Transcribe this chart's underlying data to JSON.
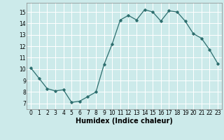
{
  "x": [
    0,
    1,
    2,
    3,
    4,
    5,
    6,
    7,
    8,
    9,
    10,
    11,
    12,
    13,
    14,
    15,
    16,
    17,
    18,
    19,
    20,
    21,
    22,
    23
  ],
  "y": [
    10.1,
    9.2,
    8.3,
    8.1,
    8.2,
    7.1,
    7.2,
    7.6,
    8.0,
    10.4,
    12.2,
    14.3,
    14.7,
    14.3,
    15.2,
    15.0,
    14.2,
    15.1,
    15.0,
    14.2,
    13.1,
    12.7,
    11.7,
    10.5
  ],
  "xlim": [
    -0.5,
    23.5
  ],
  "ylim": [
    6.5,
    15.8
  ],
  "yticks": [
    7,
    8,
    9,
    10,
    11,
    12,
    13,
    14,
    15
  ],
  "xticks": [
    0,
    1,
    2,
    3,
    4,
    5,
    6,
    7,
    8,
    9,
    10,
    11,
    12,
    13,
    14,
    15,
    16,
    17,
    18,
    19,
    20,
    21,
    22,
    23
  ],
  "xlabel": "Humidex (Indice chaleur)",
  "line_color": "#2d6e6e",
  "marker": "D",
  "marker_size": 1.8,
  "bg_color": "#cceaea",
  "grid_color": "#ffffff",
  "tick_label_fontsize": 5.5,
  "xlabel_fontsize": 7.0
}
